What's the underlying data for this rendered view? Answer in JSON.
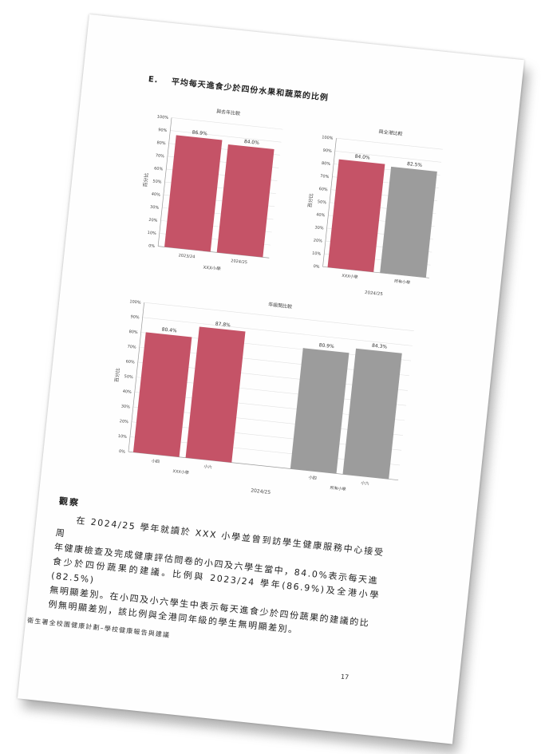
{
  "section": {
    "letter": "E.",
    "title": "平均每天進食少於四份水果和蔬菜的比例"
  },
  "colors": {
    "school": "#c55367",
    "hk": "#9c9c9c"
  },
  "chart_data": [
    {
      "type": "bar",
      "title": "與去年比較",
      "ylabel": "百分比",
      "ylim": [
        0,
        100
      ],
      "yticks": [
        "0%",
        "10%",
        "20%",
        "30%",
        "40%",
        "50%",
        "60%",
        "70%",
        "80%",
        "90%",
        "100%"
      ],
      "categories": [
        "2023/24",
        "2024/25"
      ],
      "values": [
        86.9,
        84.0
      ],
      "value_labels": [
        "86.9%",
        "84.0%"
      ],
      "xlabel": "XXX小學",
      "grid": true
    },
    {
      "type": "bar",
      "title": "與全港比較",
      "ylabel": "百分比",
      "ylim": [
        0,
        100
      ],
      "yticks": [
        "0%",
        "10%",
        "20%",
        "30%",
        "40%",
        "50%",
        "60%",
        "70%",
        "80%",
        "90%",
        "100%"
      ],
      "categories": [
        "XXX小學",
        "所有小學"
      ],
      "values": [
        84.0,
        82.5
      ],
      "value_labels": [
        "84.0%",
        "82.5%"
      ],
      "xlabel": "2024/25",
      "grid": true
    },
    {
      "type": "bar",
      "title": "年級間比較",
      "ylabel": "百分比",
      "ylim": [
        0,
        100
      ],
      "yticks": [
        "0%",
        "10%",
        "20%",
        "30%",
        "40%",
        "50%",
        "60%",
        "70%",
        "80%",
        "90%",
        "100%"
      ],
      "categories": [
        "小四",
        "小六",
        "小四",
        "小六"
      ],
      "groups": [
        "XXX小學",
        "所有小學"
      ],
      "values": [
        80.4,
        87.8,
        80.9,
        84.3
      ],
      "value_labels": [
        "80.4%",
        "87.8%",
        "80.9%",
        "84.3%"
      ],
      "xlabel": "2024/25",
      "grid": true
    }
  ],
  "observation": {
    "title": "觀察",
    "paragraph": [
      "在 2024/25 學年就讀於 XXX 小學並曾到訪學生健康服務中心接受周",
      "年健康檢查及完成健康評估問卷的小四及六學生當中，84.0%表示每天進",
      "食少於四份蔬果的建議。比例與 2023/24 學年(86.9%)及全港小學(82.5%)",
      "無明顯差別。在小四及小六學生中表示每天進食少於四份蔬果的建議的比",
      "例無明顯差別，該比例與全港同年級的學生無明顯差別。"
    ]
  },
  "footer": "衛生署全校園健康計劃–學校健康報告與建議",
  "page_number": "17"
}
